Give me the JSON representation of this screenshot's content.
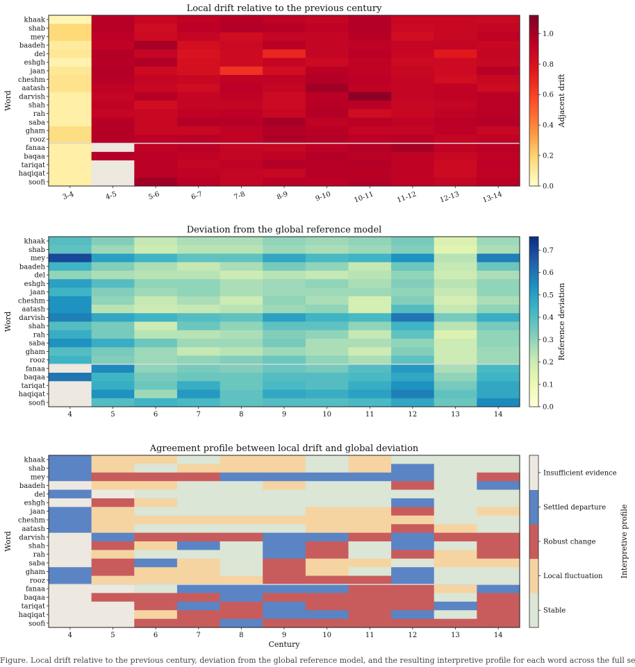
{
  "chart_data": [
    {
      "type": "heatmap",
      "title": "Local drift relative to the previous century",
      "ylabel": "Word",
      "xlabel": "",
      "x_tick_labels": [
        "3-4",
        "4-5",
        "5-6",
        "6-7",
        "7-8",
        "8-9",
        "9-10",
        "10-11",
        "11-12",
        "12-13",
        "13-14"
      ],
      "words": [
        "khaak",
        "shab",
        "mey",
        "baadeh",
        "del",
        "eshgh",
        "jaan",
        "cheshm",
        "aatash",
        "darvish",
        "shah",
        "rah",
        "saba",
        "gham",
        "rooz",
        "fanaa",
        "baqaa",
        "tariqat",
        "haqiqat",
        "soofi"
      ],
      "colorbar_label": "Adjacent drift",
      "colorbar_range": [
        0,
        1.12
      ],
      "colorbar_ticks": [
        "0.0",
        "0.2",
        "0.4",
        "0.6",
        "0.8",
        "1.0"
      ],
      "colormap": [
        "#ffffcc",
        "#fed976",
        "#fd8d3c",
        "#fc4e2a",
        "#e31a1c",
        "#bd0026",
        "#800026"
      ],
      "missing_color": "#ede8e0",
      "values": [
        [
          0.05,
          0.95,
          0.88,
          0.92,
          0.95,
          0.92,
          0.9,
          0.96,
          0.88,
          0.88,
          0.87
        ],
        [
          0.18,
          0.95,
          0.85,
          0.93,
          0.96,
          0.95,
          0.92,
          0.96,
          0.87,
          0.88,
          0.9
        ],
        [
          0.18,
          0.93,
          0.86,
          0.9,
          0.84,
          0.9,
          0.9,
          0.95,
          0.84,
          0.88,
          0.92
        ],
        [
          0.1,
          0.92,
          1.0,
          0.83,
          0.87,
          0.94,
          0.9,
          0.92,
          0.9,
          0.9,
          0.88
        ],
        [
          0.12,
          0.96,
          0.9,
          0.8,
          0.86,
          0.7,
          0.9,
          0.94,
          0.88,
          0.76,
          0.9
        ],
        [
          0.06,
          0.95,
          0.97,
          0.82,
          0.86,
          0.9,
          0.86,
          0.92,
          0.86,
          0.86,
          0.88
        ],
        [
          0.12,
          0.96,
          0.86,
          0.82,
          0.66,
          0.84,
          0.94,
          0.92,
          0.88,
          0.86,
          0.95
        ],
        [
          0.14,
          0.95,
          0.9,
          0.88,
          0.92,
          0.92,
          0.96,
          0.93,
          0.9,
          0.84,
          0.88
        ],
        [
          0.14,
          0.92,
          0.88,
          0.85,
          0.93,
          0.9,
          1.02,
          0.92,
          0.9,
          0.92,
          0.86
        ],
        [
          0.08,
          0.9,
          0.95,
          0.9,
          0.92,
          0.86,
          0.94,
          1.08,
          0.9,
          0.92,
          0.94
        ],
        [
          0.08,
          0.92,
          0.84,
          0.9,
          0.9,
          0.86,
          0.95,
          0.94,
          0.88,
          0.9,
          0.94
        ],
        [
          0.08,
          0.9,
          0.88,
          0.92,
          0.93,
          0.88,
          0.96,
          0.85,
          0.88,
          0.92,
          0.94
        ],
        [
          0.08,
          0.95,
          0.88,
          0.96,
          0.95,
          1.0,
          0.92,
          0.94,
          0.92,
          0.94,
          0.96
        ],
        [
          0.16,
          0.96,
          0.88,
          0.88,
          0.92,
          0.96,
          0.94,
          0.9,
          0.9,
          0.93,
          0.88
        ],
        [
          0.16,
          0.95,
          0.93,
          0.94,
          0.92,
          0.98,
          0.96,
          0.93,
          0.94,
          0.9,
          0.92
        ],
        [
          0.08,
          0.08,
          0.92,
          0.94,
          0.9,
          0.88,
          0.93,
          0.96,
          1.0,
          0.92,
          0.94
        ],
        [
          0.08,
          0.96,
          0.94,
          0.92,
          0.9,
          0.92,
          0.96,
          0.94,
          0.92,
          0.88,
          0.92
        ],
        [
          0.08,
          0.08,
          0.94,
          0.9,
          0.92,
          0.96,
          0.95,
          0.96,
          0.92,
          0.86,
          0.93
        ],
        [
          0.08,
          0.08,
          0.94,
          0.92,
          0.9,
          0.88,
          0.95,
          0.94,
          0.92,
          0.86,
          0.92
        ],
        [
          0.08,
          0.08,
          1.02,
          0.94,
          0.9,
          0.94,
          0.93,
          0.96,
          0.92,
          0.9,
          0.94
        ]
      ],
      "missing": [
        [
          15,
          1
        ],
        [
          17,
          1
        ],
        [
          18,
          1
        ],
        [
          19,
          1
        ]
      ]
    },
    {
      "type": "heatmap",
      "title": "Deviation from the global reference model",
      "ylabel": "Word",
      "xlabel": "",
      "x_tick_labels": [
        "4",
        "5",
        "6",
        "7",
        "8",
        "9",
        "10",
        "11",
        "12",
        "13",
        "14"
      ],
      "words": [
        "khaak",
        "shab",
        "mey",
        "baadeh",
        "del",
        "eshgh",
        "jaan",
        "cheshm",
        "aatash",
        "darvish",
        "shah",
        "rah",
        "saba",
        "gham",
        "rooz",
        "fanaa",
        "baqaa",
        "tariqat",
        "haqiqat",
        "soofi"
      ],
      "colorbar_label": "Reference deviation",
      "colorbar_range": [
        0,
        0.76
      ],
      "colorbar_ticks": [
        "0.0",
        "0.1",
        "0.2",
        "0.3",
        "0.4",
        "0.5",
        "0.6",
        "0.7"
      ],
      "colormap": [
        "#ffffd9",
        "#edf8b1",
        "#c7e9b4",
        "#7fcdbb",
        "#41b6c4",
        "#1d91c0",
        "#225ea8",
        "#0c2c84"
      ],
      "missing_color": "#ede8e0",
      "values": [
        [
          0.4,
          0.32,
          0.22,
          0.26,
          0.26,
          0.3,
          0.28,
          0.3,
          0.34,
          0.16,
          0.28
        ],
        [
          0.38,
          0.28,
          0.2,
          0.24,
          0.24,
          0.28,
          0.26,
          0.28,
          0.32,
          0.14,
          0.26
        ],
        [
          0.7,
          0.5,
          0.44,
          0.38,
          0.38,
          0.48,
          0.42,
          0.44,
          0.54,
          0.24,
          0.58
        ],
        [
          0.44,
          0.32,
          0.26,
          0.22,
          0.26,
          0.34,
          0.3,
          0.22,
          0.36,
          0.22,
          0.36
        ],
        [
          0.3,
          0.26,
          0.24,
          0.24,
          0.2,
          0.24,
          0.22,
          0.24,
          0.3,
          0.2,
          0.26
        ],
        [
          0.5,
          0.4,
          0.3,
          0.3,
          0.26,
          0.28,
          0.3,
          0.26,
          0.32,
          0.24,
          0.3
        ],
        [
          0.44,
          0.32,
          0.28,
          0.3,
          0.26,
          0.28,
          0.28,
          0.28,
          0.3,
          0.22,
          0.3
        ],
        [
          0.54,
          0.3,
          0.22,
          0.26,
          0.2,
          0.3,
          0.26,
          0.18,
          0.32,
          0.18,
          0.26
        ],
        [
          0.54,
          0.24,
          0.2,
          0.22,
          0.24,
          0.28,
          0.3,
          0.18,
          0.4,
          0.22,
          0.3
        ],
        [
          0.58,
          0.48,
          0.44,
          0.4,
          0.38,
          0.5,
          0.44,
          0.42,
          0.6,
          0.34,
          0.46
        ],
        [
          0.4,
          0.34,
          0.2,
          0.36,
          0.3,
          0.38,
          0.38,
          0.3,
          0.44,
          0.24,
          0.34
        ],
        [
          0.46,
          0.34,
          0.24,
          0.24,
          0.26,
          0.32,
          0.3,
          0.22,
          0.38,
          0.16,
          0.3
        ],
        [
          0.54,
          0.46,
          0.36,
          0.28,
          0.28,
          0.34,
          0.26,
          0.26,
          0.3,
          0.2,
          0.3
        ],
        [
          0.4,
          0.34,
          0.28,
          0.22,
          0.24,
          0.28,
          0.26,
          0.2,
          0.32,
          0.2,
          0.28
        ],
        [
          0.44,
          0.32,
          0.28,
          0.3,
          0.32,
          0.36,
          0.3,
          0.26,
          0.38,
          0.2,
          0.28
        ],
        [
          0.08,
          0.56,
          0.3,
          0.34,
          0.32,
          0.36,
          0.34,
          0.4,
          0.52,
          0.26,
          0.42
        ],
        [
          0.6,
          0.44,
          0.34,
          0.36,
          0.36,
          0.4,
          0.4,
          0.42,
          0.48,
          0.3,
          0.44
        ],
        [
          0.08,
          0.46,
          0.36,
          0.46,
          0.36,
          0.42,
          0.4,
          0.46,
          0.54,
          0.34,
          0.48
        ],
        [
          0.08,
          0.54,
          0.28,
          0.52,
          0.38,
          0.48,
          0.46,
          0.5,
          0.58,
          0.38,
          0.48
        ],
        [
          0.08,
          0.4,
          0.44,
          0.42,
          0.38,
          0.4,
          0.4,
          0.42,
          0.48,
          0.36,
          0.56
        ]
      ],
      "missing": [
        [
          15,
          0
        ],
        [
          17,
          0
        ],
        [
          18,
          0
        ],
        [
          19,
          0
        ]
      ]
    },
    {
      "type": "heatmap",
      "title": "Agreement profile between local drift and global deviation",
      "ylabel": "Word",
      "xlabel": "Century",
      "x_tick_labels": [
        "4",
        "5",
        "6",
        "7",
        "8",
        "9",
        "10",
        "11",
        "12",
        "13",
        "14"
      ],
      "words": [
        "khaak",
        "shab",
        "mey",
        "baadeh",
        "del",
        "eshgh",
        "jaan",
        "cheshm",
        "aatash",
        "darvish",
        "shah",
        "rah",
        "saba",
        "gham",
        "rooz",
        "fanaa",
        "baqaa",
        "tariqat",
        "haqiqat",
        "soofi"
      ],
      "colorbar_label": "Interpretive profile",
      "categories": [
        "Stable",
        "Local fluctuation",
        "Robust change",
        "Settled departure",
        "Insufficient evidence"
      ],
      "category_colors": [
        "#dbe6d6",
        "#f5d4a2",
        "#c85c5c",
        "#5b84c4",
        "#ede8e0"
      ],
      "values": [
        [
          3,
          1,
          1,
          0,
          1,
          1,
          0,
          1,
          0,
          0,
          0
        ],
        [
          3,
          1,
          0,
          1,
          1,
          1,
          0,
          1,
          3,
          0,
          0
        ],
        [
          3,
          2,
          2,
          2,
          3,
          3,
          3,
          3,
          3,
          0,
          2
        ],
        [
          4,
          1,
          1,
          0,
          0,
          1,
          0,
          0,
          2,
          0,
          3
        ],
        [
          3,
          4,
          0,
          0,
          0,
          0,
          0,
          0,
          0,
          0,
          0
        ],
        [
          4,
          2,
          1,
          0,
          0,
          0,
          0,
          0,
          3,
          0,
          0
        ],
        [
          3,
          1,
          0,
          0,
          0,
          0,
          1,
          1,
          2,
          0,
          1
        ],
        [
          3,
          1,
          1,
          1,
          1,
          1,
          1,
          1,
          1,
          0,
          0
        ],
        [
          3,
          1,
          0,
          0,
          0,
          0,
          1,
          1,
          2,
          1,
          0
        ],
        [
          4,
          3,
          2,
          2,
          2,
          3,
          3,
          2,
          3,
          2,
          2
        ],
        [
          4,
          2,
          1,
          3,
          0,
          3,
          2,
          0,
          3,
          0,
          2
        ],
        [
          4,
          1,
          0,
          0,
          0,
          3,
          2,
          0,
          2,
          1,
          2
        ],
        [
          4,
          2,
          3,
          1,
          0,
          2,
          1,
          1,
          0,
          1,
          1
        ],
        [
          3,
          2,
          1,
          1,
          0,
          2,
          1,
          0,
          3,
          0,
          0
        ],
        [
          3,
          1,
          1,
          1,
          1,
          2,
          2,
          2,
          3,
          0,
          0
        ],
        [
          4,
          4,
          0,
          3,
          3,
          3,
          3,
          2,
          2,
          1,
          3
        ],
        [
          4,
          2,
          2,
          2,
          3,
          2,
          2,
          2,
          2,
          0,
          2
        ],
        [
          4,
          4,
          2,
          3,
          2,
          3,
          2,
          2,
          2,
          3,
          2
        ],
        [
          4,
          4,
          1,
          2,
          2,
          3,
          3,
          2,
          3,
          0,
          2
        ],
        [
          4,
          4,
          2,
          2,
          3,
          2,
          2,
          2,
          2,
          2,
          2
        ]
      ]
    }
  ],
  "caption": "Figure. Local drift relative to the previous century, deviation from the global reference model, and the resulting interpretive profile for each word across the full sequence of centuries and word-level drift."
}
